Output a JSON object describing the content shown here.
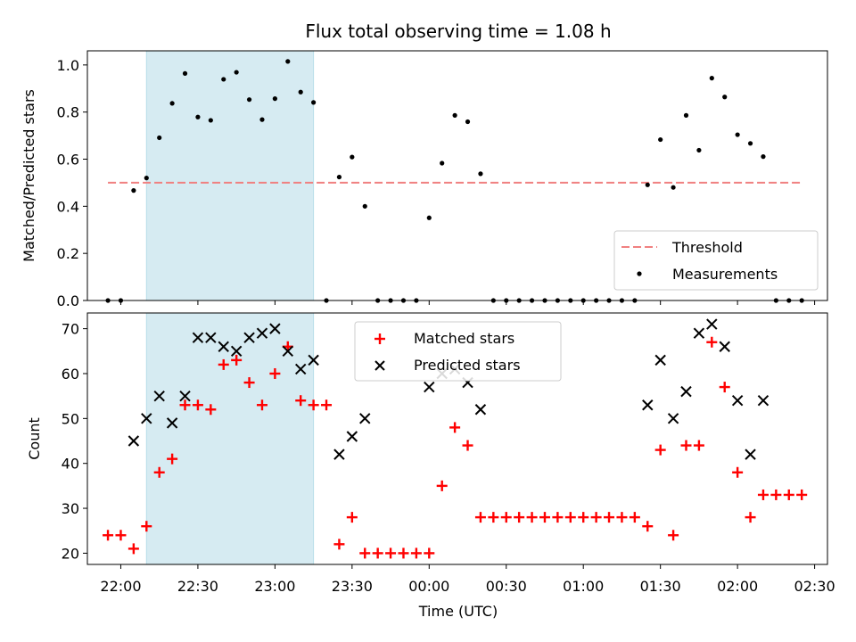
{
  "figure_title": "Flux total observing time = 1.08 h",
  "chart_data": [
    {
      "type": "scatter",
      "panel": "top",
      "ylabel": "Matched/Predicted stars",
      "xlabel": "",
      "ylim": [
        0,
        1.06
      ],
      "yticks": [
        0.0,
        0.2,
        0.4,
        0.6,
        0.8,
        1.0
      ],
      "ytick_labels": [
        "0.0",
        "0.2",
        "0.4",
        "0.6",
        "0.8",
        "1.0"
      ],
      "threshold": {
        "name": "Threshold",
        "value": 0.5,
        "color": "#f08080",
        "style": "dashed"
      },
      "highlight_span": {
        "start": "22:10",
        "end": "23:15",
        "color": "#add8e6"
      },
      "legend": {
        "position": "lower right",
        "entries": [
          "Threshold",
          "Measurements"
        ]
      },
      "series": [
        {
          "name": "Measurements",
          "marker": "dot",
          "color": "#000000",
          "x": [
            "21:55",
            "22:00",
            "22:05",
            "22:10",
            "22:15",
            "22:20",
            "22:25",
            "22:30",
            "22:35",
            "22:40",
            "22:45",
            "22:50",
            "22:55",
            "23:00",
            "23:05",
            "23:10",
            "23:15",
            "23:20",
            "23:25",
            "23:30",
            "23:35",
            "23:40",
            "23:45",
            "23:50",
            "23:55",
            "00:00",
            "00:05",
            "00:10",
            "00:15",
            "00:20",
            "00:25",
            "00:30",
            "00:35",
            "00:40",
            "00:45",
            "00:50",
            "00:55",
            "01:00",
            "01:05",
            "01:10",
            "01:15",
            "01:20",
            "01:25",
            "01:30",
            "01:35",
            "01:40",
            "01:45",
            "01:50",
            "01:55",
            "02:00",
            "02:05",
            "02:10",
            "02:15",
            "02:20",
            "02:25"
          ],
          "y": [
            0,
            0,
            0.467,
            0.52,
            0.691,
            0.837,
            0.964,
            0.779,
            0.765,
            0.939,
            0.969,
            0.853,
            0.768,
            0.857,
            1.015,
            0.885,
            0.841,
            0,
            0.524,
            0.609,
            0.4,
            0,
            0,
            0,
            0,
            0.351,
            0.583,
            0.786,
            0.759,
            0.538,
            0,
            0,
            0,
            0,
            0,
            0,
            0,
            0,
            0,
            0,
            0,
            0,
            0.491,
            0.683,
            0.48,
            0.786,
            0.638,
            0.944,
            0.864,
            0.704,
            0.667,
            0.611,
            0,
            0,
            0
          ]
        }
      ]
    },
    {
      "type": "scatter",
      "panel": "bottom",
      "ylabel": "Count",
      "xlabel": "Time (UTC)",
      "ylim": [
        17.5,
        73.5
      ],
      "yticks": [
        20,
        30,
        40,
        50,
        60,
        70
      ],
      "ytick_labels": [
        "20",
        "30",
        "40",
        "50",
        "60",
        "70"
      ],
      "x_range": [
        "21:47",
        "02:35"
      ],
      "xticks": [
        "22:00",
        "22:30",
        "23:00",
        "23:30",
        "00:00",
        "00:30",
        "01:00",
        "01:30",
        "02:00",
        "02:30"
      ],
      "highlight_span": {
        "start": "22:10",
        "end": "23:15",
        "color": "#add8e6"
      },
      "legend": {
        "position": "upper center",
        "entries": [
          "Matched stars",
          "Predicted stars"
        ]
      },
      "series": [
        {
          "name": "Matched stars",
          "marker": "plus",
          "color": "#ff0000",
          "x": [
            "21:55",
            "22:00",
            "22:05",
            "22:10",
            "22:15",
            "22:20",
            "22:25",
            "22:30",
            "22:35",
            "22:40",
            "22:45",
            "22:50",
            "22:55",
            "23:00",
            "23:05",
            "23:10",
            "23:15",
            "23:20",
            "23:25",
            "23:30",
            "23:35",
            "23:40",
            "23:45",
            "23:50",
            "23:55",
            "00:00",
            "00:05",
            "00:10",
            "00:15",
            "00:20",
            "00:25",
            "00:30",
            "00:35",
            "00:40",
            "00:45",
            "00:50",
            "00:55",
            "01:00",
            "01:05",
            "01:10",
            "01:15",
            "01:20",
            "01:25",
            "01:30",
            "01:35",
            "01:40",
            "01:45",
            "01:50",
            "01:55",
            "02:00",
            "02:05",
            "02:10",
            "02:15",
            "02:20",
            "02:25"
          ],
          "y": [
            24,
            24,
            21,
            26,
            38,
            41,
            53,
            53,
            52,
            62,
            63,
            58,
            53,
            60,
            66,
            54,
            53,
            53,
            22,
            28,
            20,
            20,
            20,
            20,
            20,
            20,
            35,
            48,
            44,
            28,
            28,
            28,
            28,
            28,
            28,
            28,
            28,
            28,
            28,
            28,
            28,
            28,
            26,
            43,
            24,
            44,
            44,
            67,
            57,
            38,
            28,
            33,
            33,
            33,
            33
          ]
        },
        {
          "name": "Predicted stars",
          "marker": "x",
          "color": "#000000",
          "x": [
            "22:05",
            "22:10",
            "22:15",
            "22:20",
            "22:25",
            "22:30",
            "22:35",
            "22:40",
            "22:45",
            "22:50",
            "22:55",
            "23:00",
            "23:05",
            "23:10",
            "23:15",
            "23:25",
            "23:30",
            "23:35",
            "00:00",
            "00:05",
            "00:10",
            "00:15",
            "00:20",
            "01:25",
            "01:30",
            "01:35",
            "01:40",
            "01:45",
            "01:50",
            "01:55",
            "02:00",
            "02:05",
            "02:10"
          ],
          "y": [
            45,
            50,
            55,
            49,
            55,
            68,
            68,
            66,
            65,
            68,
            69,
            70,
            65,
            61,
            63,
            42,
            46,
            50,
            57,
            60,
            61,
            58,
            52,
            53,
            63,
            50,
            56,
            69,
            71,
            66,
            54,
            42,
            54
          ]
        }
      ]
    }
  ]
}
